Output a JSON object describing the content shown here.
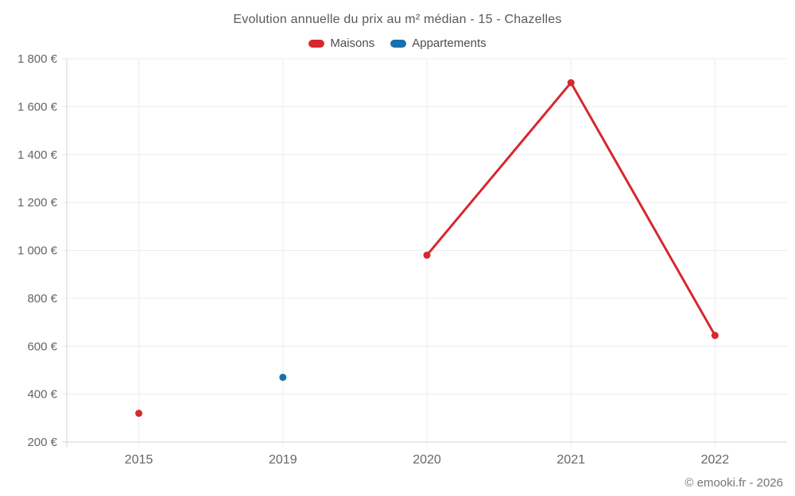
{
  "chart_data": {
    "type": "line",
    "title": "Evolution annuelle du prix au m² médian - 15 - Chazelles",
    "categories": [
      "2015",
      "2019",
      "2020",
      "2021",
      "2022"
    ],
    "series": [
      {
        "name": "Maisons",
        "color": "#d7282f",
        "values": [
          320,
          null,
          980,
          1700,
          645
        ]
      },
      {
        "name": "Appartements",
        "color": "#1a6fae",
        "values": [
          null,
          470,
          null,
          null,
          null
        ]
      }
    ],
    "ylim": [
      200,
      1800
    ],
    "yticks": [
      200,
      400,
      600,
      800,
      1000,
      1200,
      1400,
      1600,
      1800
    ],
    "ytick_labels": [
      "200 €",
      "400 €",
      "600 €",
      "800 €",
      "1 000 €",
      "1 200 €",
      "1 400 €",
      "1 600 €",
      "1 800 €"
    ],
    "xlabel": "",
    "ylabel": "",
    "grid": true,
    "legend_position": "top",
    "colors": {
      "grid": "#ececec",
      "axis": "#d4d4d4",
      "tick_text": "#666666"
    }
  },
  "footer": {
    "copyright": "© emooki.fr - 2026"
  }
}
